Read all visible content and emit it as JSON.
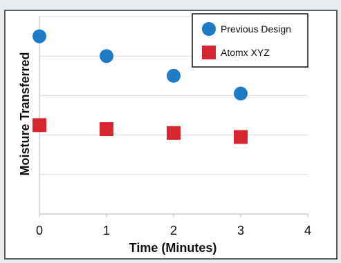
{
  "chart_data": {
    "type": "scatter",
    "xlabel": "Time (Minutes)",
    "ylabel": "Moisture Transferred",
    "xlim": [
      0,
      4
    ],
    "x_ticks": [
      "0",
      "1",
      "2",
      "3",
      "4"
    ],
    "ylim": [
      0,
      10
    ],
    "y_tick_values": [
      2,
      4,
      6,
      8,
      10
    ],
    "y_tick_labels_shown": false,
    "grid": "horizontal",
    "legend_position": "top-right",
    "series": [
      {
        "name": "Previous Design",
        "marker": "circle",
        "color": "#1f7bc4",
        "x": [
          0,
          1,
          2,
          3
        ],
        "y": [
          9.0,
          8.0,
          7.0,
          6.1
        ]
      },
      {
        "name": "Atomx XYZ",
        "marker": "square",
        "color": "#d72630",
        "x": [
          0,
          1,
          2,
          3
        ],
        "y": [
          4.5,
          4.3,
          4.1,
          3.9
        ]
      }
    ]
  }
}
